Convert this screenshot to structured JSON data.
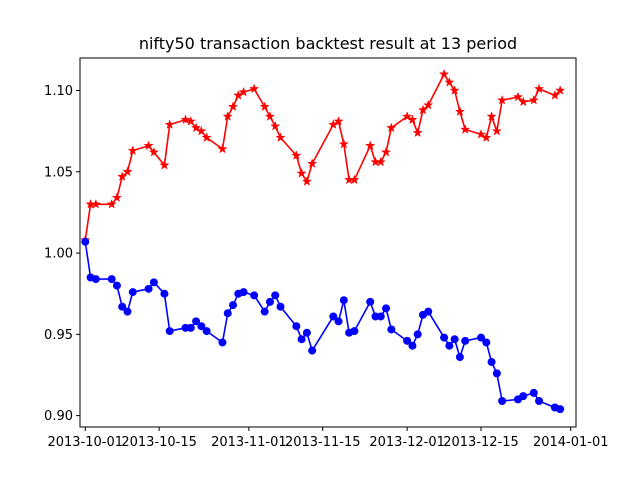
{
  "chart_data": {
    "type": "line",
    "title": "nifty50 transaction backtest result at 13 period",
    "xlabel": "",
    "ylabel": "",
    "x_range": [
      "2013-09-30",
      "2014-01-02"
    ],
    "ylim": [
      0.893,
      1.12
    ],
    "grid": false,
    "x_ticks": [
      {
        "date": "2013-10-01",
        "label": "2013-10-01"
      },
      {
        "date": "2013-10-15",
        "label": "2013-10-15"
      },
      {
        "date": "2013-11-01",
        "label": "2013-11-01"
      },
      {
        "date": "2013-11-15",
        "label": "2013-11-15"
      },
      {
        "date": "2013-12-01",
        "label": "2013-12-01"
      },
      {
        "date": "2013-12-15",
        "label": "2013-12-15"
      },
      {
        "date": "2014-01-01",
        "label": "2014-01-01"
      }
    ],
    "y_ticks": [
      {
        "value": 0.9,
        "label": "0.90"
      },
      {
        "value": 0.95,
        "label": "0.95"
      },
      {
        "value": 1.0,
        "label": "1.00"
      },
      {
        "value": 1.05,
        "label": "1.05"
      },
      {
        "value": 1.1,
        "label": "1.10"
      }
    ],
    "series": [
      {
        "color": "#ff0000",
        "marker": "star",
        "points": [
          [
            "2013-10-01",
            1.008
          ],
          [
            "2013-10-02",
            1.03
          ],
          [
            "2013-10-03",
            1.03
          ],
          [
            "2013-10-06",
            1.03
          ],
          [
            "2013-10-07",
            1.034
          ],
          [
            "2013-10-08",
            1.047
          ],
          [
            "2013-10-09",
            1.05
          ],
          [
            "2013-10-10",
            1.063
          ],
          [
            "2013-10-13",
            1.066
          ],
          [
            "2013-10-14",
            1.062
          ],
          [
            "2013-10-16",
            1.054
          ],
          [
            "2013-10-17",
            1.079
          ],
          [
            "2013-10-20",
            1.082
          ],
          [
            "2013-10-21",
            1.081
          ],
          [
            "2013-10-22",
            1.077
          ],
          [
            "2013-10-23",
            1.075
          ],
          [
            "2013-10-24",
            1.071
          ],
          [
            "2013-10-27",
            1.064
          ],
          [
            "2013-10-28",
            1.084
          ],
          [
            "2013-10-29",
            1.09
          ],
          [
            "2013-10-30",
            1.097
          ],
          [
            "2013-10-31",
            1.099
          ],
          [
            "2013-11-02",
            1.101
          ],
          [
            "2013-11-04",
            1.09
          ],
          [
            "2013-11-05",
            1.084
          ],
          [
            "2013-11-06",
            1.078
          ],
          [
            "2013-11-07",
            1.071
          ],
          [
            "2013-11-10",
            1.06
          ],
          [
            "2013-11-11",
            1.049
          ],
          [
            "2013-11-12",
            1.044
          ],
          [
            "2013-11-13",
            1.055
          ],
          [
            "2013-11-17",
            1.079
          ],
          [
            "2013-11-18",
            1.081
          ],
          [
            "2013-11-19",
            1.067
          ],
          [
            "2013-11-20",
            1.045
          ],
          [
            "2013-11-21",
            1.045
          ],
          [
            "2013-11-24",
            1.066
          ],
          [
            "2013-11-25",
            1.056
          ],
          [
            "2013-11-26",
            1.056
          ],
          [
            "2013-11-27",
            1.062
          ],
          [
            "2013-11-28",
            1.077
          ],
          [
            "2013-12-01",
            1.084
          ],
          [
            "2013-12-02",
            1.082
          ],
          [
            "2013-12-03",
            1.074
          ],
          [
            "2013-12-04",
            1.088
          ],
          [
            "2013-12-05",
            1.091
          ],
          [
            "2013-12-08",
            1.11
          ],
          [
            "2013-12-09",
            1.105
          ],
          [
            "2013-12-10",
            1.1
          ],
          [
            "2013-12-11",
            1.087
          ],
          [
            "2013-12-12",
            1.076
          ],
          [
            "2013-12-15",
            1.073
          ],
          [
            "2013-12-16",
            1.071
          ],
          [
            "2013-12-17",
            1.084
          ],
          [
            "2013-12-18",
            1.075
          ],
          [
            "2013-12-19",
            1.094
          ],
          [
            "2013-12-22",
            1.096
          ],
          [
            "2013-12-23",
            1.093
          ],
          [
            "2013-12-25",
            1.094
          ],
          [
            "2013-12-26",
            1.101
          ],
          [
            "2013-12-29",
            1.097
          ],
          [
            "2013-12-30",
            1.1
          ]
        ]
      },
      {
        "color": "#0000ff",
        "marker": "circle",
        "points": [
          [
            "2013-10-01",
            1.007
          ],
          [
            "2013-10-02",
            0.985
          ],
          [
            "2013-10-03",
            0.984
          ],
          [
            "2013-10-06",
            0.984
          ],
          [
            "2013-10-07",
            0.98
          ],
          [
            "2013-10-08",
            0.967
          ],
          [
            "2013-10-09",
            0.964
          ],
          [
            "2013-10-10",
            0.976
          ],
          [
            "2013-10-13",
            0.978
          ],
          [
            "2013-10-14",
            0.982
          ],
          [
            "2013-10-16",
            0.975
          ],
          [
            "2013-10-17",
            0.952
          ],
          [
            "2013-10-20",
            0.954
          ],
          [
            "2013-10-21",
            0.954
          ],
          [
            "2013-10-22",
            0.958
          ],
          [
            "2013-10-23",
            0.955
          ],
          [
            "2013-10-24",
            0.952
          ],
          [
            "2013-10-27",
            0.945
          ],
          [
            "2013-10-28",
            0.963
          ],
          [
            "2013-10-29",
            0.968
          ],
          [
            "2013-10-30",
            0.975
          ],
          [
            "2013-10-31",
            0.976
          ],
          [
            "2013-11-02",
            0.974
          ],
          [
            "2013-11-04",
            0.964
          ],
          [
            "2013-11-05",
            0.97
          ],
          [
            "2013-11-06",
            0.974
          ],
          [
            "2013-11-07",
            0.967
          ],
          [
            "2013-11-10",
            0.955
          ],
          [
            "2013-11-11",
            0.947
          ],
          [
            "2013-11-12",
            0.951
          ],
          [
            "2013-11-13",
            0.94
          ],
          [
            "2013-11-17",
            0.961
          ],
          [
            "2013-11-18",
            0.958
          ],
          [
            "2013-11-19",
            0.971
          ],
          [
            "2013-11-20",
            0.951
          ],
          [
            "2013-11-21",
            0.952
          ],
          [
            "2013-11-24",
            0.97
          ],
          [
            "2013-11-25",
            0.961
          ],
          [
            "2013-11-26",
            0.961
          ],
          [
            "2013-11-27",
            0.966
          ],
          [
            "2013-11-28",
            0.953
          ],
          [
            "2013-12-01",
            0.946
          ],
          [
            "2013-12-02",
            0.943
          ],
          [
            "2013-12-03",
            0.95
          ],
          [
            "2013-12-04",
            0.962
          ],
          [
            "2013-12-05",
            0.964
          ],
          [
            "2013-12-08",
            0.948
          ],
          [
            "2013-12-09",
            0.943
          ],
          [
            "2013-12-10",
            0.947
          ],
          [
            "2013-12-11",
            0.936
          ],
          [
            "2013-12-12",
            0.946
          ],
          [
            "2013-12-15",
            0.948
          ],
          [
            "2013-12-16",
            0.945
          ],
          [
            "2013-12-17",
            0.933
          ],
          [
            "2013-12-18",
            0.926
          ],
          [
            "2013-12-19",
            0.909
          ],
          [
            "2013-12-22",
            0.91
          ],
          [
            "2013-12-23",
            0.912
          ],
          [
            "2013-12-25",
            0.914
          ],
          [
            "2013-12-26",
            0.909
          ],
          [
            "2013-12-29",
            0.905
          ],
          [
            "2013-12-30",
            0.904
          ]
        ]
      }
    ]
  }
}
